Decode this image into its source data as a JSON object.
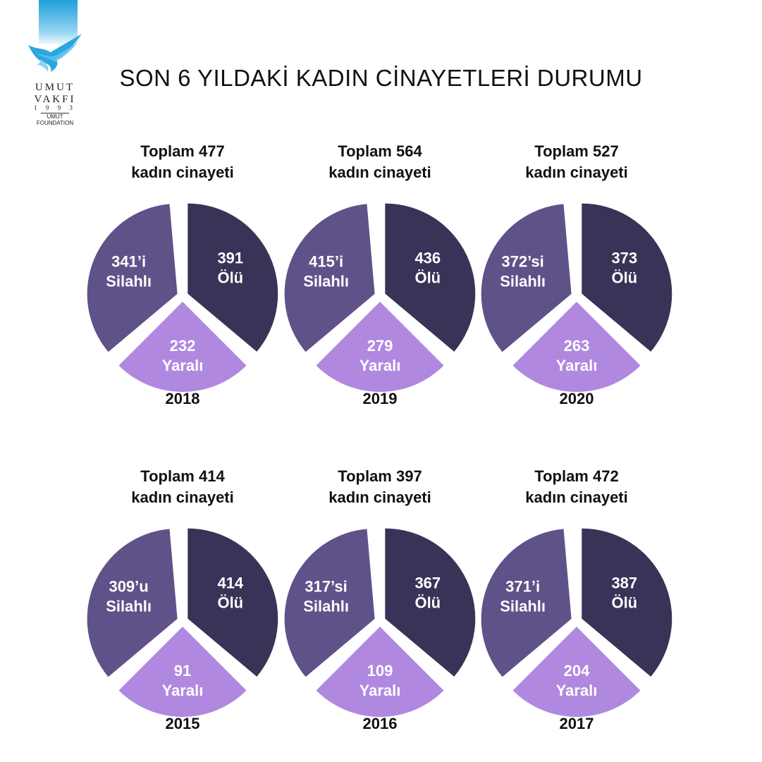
{
  "title": "SON 6 YILDAKİ KADIN CİNAYETLERİ DURUMU",
  "logo": {
    "line1": "UMUT",
    "line2": "VAKFI",
    "line3": "1 9 9 3",
    "line4": "UMUT",
    "line5": "FOUNDATION"
  },
  "colors": {
    "silahli": "#5f5289",
    "olu": "#383357",
    "yarali": "#b088e0"
  },
  "chart_data": [
    {
      "type": "pie",
      "year": "2018",
      "total_label": "Toplam 477",
      "subtitle": "kadın cinayeti",
      "slices": [
        {
          "value": 391,
          "label": "391",
          "sub": "Ölü"
        },
        {
          "value": 232,
          "label": "232",
          "sub": "Yaralı"
        },
        {
          "value": 341,
          "label": "341’i",
          "sub": "Silahlı"
        }
      ]
    },
    {
      "type": "pie",
      "year": "2019",
      "total_label": "Toplam 564",
      "subtitle": "kadın cinayeti",
      "slices": [
        {
          "value": 436,
          "label": "436",
          "sub": "Ölü"
        },
        {
          "value": 279,
          "label": "279",
          "sub": "Yaralı"
        },
        {
          "value": 415,
          "label": "415’i",
          "sub": "Silahlı"
        }
      ]
    },
    {
      "type": "pie",
      "year": "2020",
      "total_label": "Toplam 527",
      "subtitle": "kadın cinayeti",
      "slices": [
        {
          "value": 373,
          "label": "373",
          "sub": "Ölü"
        },
        {
          "value": 263,
          "label": "263",
          "sub": "Yaralı"
        },
        {
          "value": 372,
          "label": "372’si",
          "sub": "Silahlı"
        }
      ]
    },
    {
      "type": "pie",
      "year": "2015",
      "total_label": "Toplam 414",
      "subtitle": "kadın cinayeti",
      "slices": [
        {
          "value": 414,
          "label": "414",
          "sub": "Ölü"
        },
        {
          "value": 91,
          "label": "91",
          "sub": "Yaralı"
        },
        {
          "value": 309,
          "label": "309’u",
          "sub": "Silahlı"
        }
      ]
    },
    {
      "type": "pie",
      "year": "2016",
      "total_label": "Toplam 397",
      "subtitle": "kadın cinayeti",
      "slices": [
        {
          "value": 367,
          "label": "367",
          "sub": "Ölü"
        },
        {
          "value": 109,
          "label": "109",
          "sub": "Yaralı"
        },
        {
          "value": 317,
          "label": "317’si",
          "sub": "Silahlı"
        }
      ]
    },
    {
      "type": "pie",
      "year": "2017",
      "total_label": "Toplam 472",
      "subtitle": "kadın cinayeti",
      "slices": [
        {
          "value": 387,
          "label": "387",
          "sub": "Ölü"
        },
        {
          "value": 204,
          "label": "204",
          "sub": "Yaralı"
        },
        {
          "value": 371,
          "label": "371’i",
          "sub": "Silahlı"
        }
      ]
    }
  ]
}
